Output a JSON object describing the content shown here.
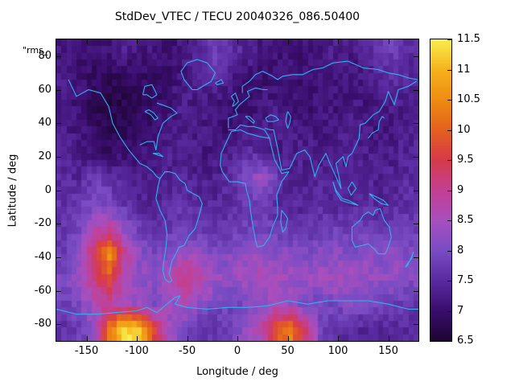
{
  "title": "StdDev_VTEC / TECU 20040326_086.50400",
  "corner_label": "\"rms_",
  "axes": {
    "x": {
      "label": "Longitude / deg",
      "range": [
        -180,
        180
      ],
      "ticks": [
        -150,
        -100,
        -50,
        0,
        50,
        100,
        150
      ]
    },
    "y": {
      "label": "Latitude / deg",
      "range": [
        -90,
        90
      ],
      "ticks": [
        -80,
        -60,
        -40,
        -20,
        0,
        20,
        40,
        60,
        80
      ]
    }
  },
  "colorbar": {
    "min": 6.5,
    "max": 11.5,
    "ticks": [
      6.5,
      7,
      7.5,
      8,
      8.5,
      9,
      9.5,
      10,
      10.5,
      11,
      11.5
    ]
  },
  "colors": {
    "coastline": "#2fb3f0",
    "axis": "#000000",
    "background": "#ffffff",
    "palette": [
      [
        0.0,
        "#1e0533"
      ],
      [
        0.1,
        "#3a0d6e"
      ],
      [
        0.2,
        "#5a2ba0"
      ],
      [
        0.3,
        "#7a4cc4"
      ],
      [
        0.4,
        "#a84fbe"
      ],
      [
        0.5,
        "#c33f93"
      ],
      [
        0.6,
        "#d63a4a"
      ],
      [
        0.7,
        "#e4611e"
      ],
      [
        0.8,
        "#ee8c12"
      ],
      [
        0.9,
        "#f5b31c"
      ],
      [
        1.0,
        "#f9ee4e"
      ]
    ]
  },
  "chart_data": {
    "type": "heatmap",
    "title": "StdDev_VTEC / TECU 20040326_086.50400",
    "xlabel": "Longitude / deg",
    "ylabel": "Latitude / deg",
    "xlim": [
      -180,
      180
    ],
    "ylim": [
      -90,
      90
    ],
    "zlim": [
      6.5,
      11.5
    ],
    "z_unit": "TECU",
    "grid": {
      "lon_start": -172.5,
      "lon_step": 15,
      "lat_start": 82.5,
      "lat_step": -15,
      "cols": 24,
      "rows": 12
    },
    "values": [
      [
        7.2,
        7.0,
        7.0,
        7.1,
        7.3,
        7.2,
        7.1,
        7.0,
        7.2,
        7.5,
        7.8,
        7.6,
        7.4,
        7.2,
        7.1,
        7.0,
        7.1,
        7.2,
        7.3,
        7.2,
        7.4,
        7.7,
        7.8,
        7.5
      ],
      [
        7.3,
        7.1,
        6.9,
        6.8,
        6.8,
        6.9,
        6.9,
        7.0,
        7.2,
        7.4,
        7.6,
        7.3,
        7.1,
        7.0,
        7.0,
        7.1,
        7.0,
        7.1,
        7.2,
        7.1,
        7.2,
        7.4,
        7.6,
        7.4
      ],
      [
        7.2,
        7.0,
        6.8,
        6.7,
        6.7,
        6.8,
        6.9,
        7.1,
        7.3,
        7.2,
        7.1,
        7.0,
        7.0,
        7.1,
        7.2,
        7.1,
        7.0,
        7.1,
        7.1,
        7.2,
        7.1,
        7.2,
        7.3,
        7.2
      ],
      [
        7.3,
        7.1,
        6.9,
        6.8,
        6.8,
        6.9,
        7.0,
        7.2,
        7.3,
        7.2,
        7.1,
        7.0,
        7.1,
        7.2,
        7.3,
        7.2,
        7.2,
        7.1,
        7.2,
        7.3,
        7.2,
        7.1,
        7.2,
        7.3
      ],
      [
        7.4,
        7.2,
        7.0,
        6.9,
        7.0,
        7.1,
        7.2,
        7.3,
        7.3,
        7.2,
        7.2,
        7.3,
        7.6,
        7.4,
        7.2,
        7.3,
        7.3,
        7.2,
        7.3,
        7.4,
        7.3,
        7.2,
        7.3,
        7.4
      ],
      [
        7.5,
        7.4,
        7.8,
        7.6,
        7.4,
        7.3,
        7.2,
        7.3,
        7.4,
        7.3,
        7.3,
        7.5,
        8.0,
        8.4,
        7.8,
        7.4,
        7.3,
        7.4,
        7.3,
        7.3,
        7.4,
        7.3,
        7.4,
        7.5
      ],
      [
        7.6,
        7.7,
        8.0,
        7.9,
        7.6,
        7.4,
        7.4,
        7.5,
        7.6,
        7.5,
        7.4,
        7.5,
        7.7,
        7.8,
        7.5,
        7.4,
        7.4,
        7.5,
        7.4,
        7.4,
        7.5,
        7.4,
        7.5,
        7.6
      ],
      [
        7.7,
        7.9,
        8.6,
        8.8,
        8.2,
        7.8,
        7.6,
        7.7,
        7.8,
        7.7,
        7.6,
        7.7,
        7.8,
        7.9,
        7.8,
        7.7,
        7.6,
        7.7,
        7.8,
        7.7,
        7.8,
        7.7,
        7.8,
        7.7
      ],
      [
        7.8,
        8.2,
        9.5,
        10.6,
        9.0,
        8.2,
        8.0,
        8.1,
        8.3,
        8.2,
        8.0,
        8.1,
        8.2,
        8.3,
        8.2,
        8.1,
        8.0,
        8.1,
        8.2,
        8.1,
        8.2,
        8.1,
        8.2,
        8.0
      ],
      [
        8.0,
        8.4,
        9.2,
        9.8,
        8.6,
        8.3,
        8.2,
        8.6,
        9.2,
        8.8,
        8.4,
        8.3,
        8.4,
        8.6,
        8.5,
        8.4,
        8.3,
        8.4,
        8.5,
        8.4,
        8.3,
        8.2,
        8.3,
        8.1
      ],
      [
        7.8,
        8.0,
        8.6,
        8.8,
        8.4,
        8.2,
        8.0,
        8.4,
        8.6,
        8.2,
        8.0,
        7.9,
        8.0,
        8.2,
        8.4,
        8.2,
        8.0,
        7.9,
        8.0,
        8.1,
        8.0,
        7.9,
        7.8,
        7.7
      ],
      [
        7.6,
        7.8,
        8.2,
        10.2,
        11.4,
        11.2,
        9.6,
        8.4,
        7.9,
        7.7,
        7.6,
        7.8,
        8.3,
        8.6,
        9.8,
        10.3,
        9.2,
        7.9,
        7.6,
        7.5,
        7.4,
        7.4,
        7.4,
        7.5
      ]
    ]
  }
}
